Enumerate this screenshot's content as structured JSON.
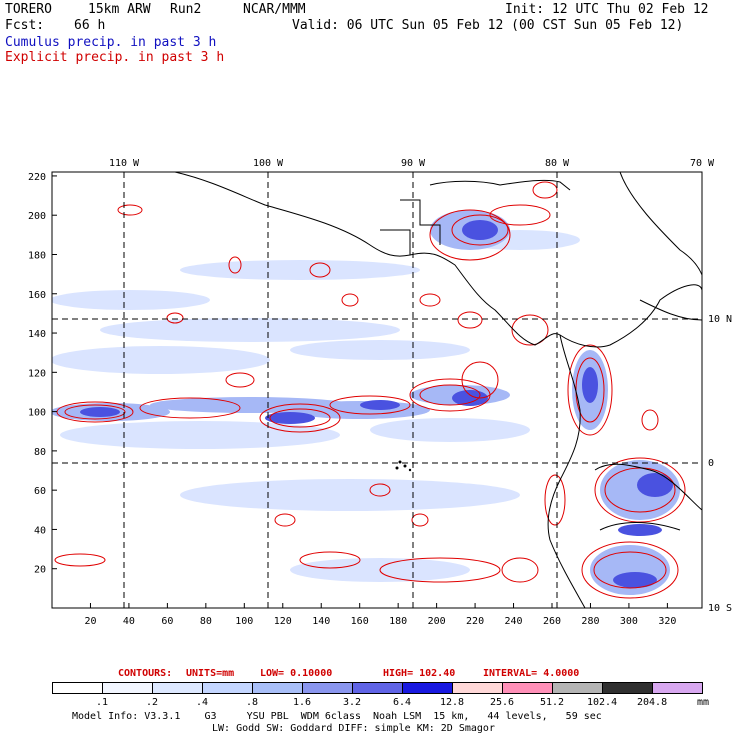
{
  "header": {
    "model": "TORERO",
    "resolution": "15km ARW",
    "run": "Run2",
    "org": "NCAR/MMM",
    "init": "Init: 12 UTC Thu 02 Feb 12",
    "fcst_label": "Fcst:",
    "fcst_value": "66 h",
    "valid": "Valid: 06 UTC Sun 05 Feb 12 (00 CST Sun 05 Feb 12)",
    "line_cumulus": "Cumulus precip. in past 3 h",
    "line_explicit": "Explicit precip. in past 3 h"
  },
  "map": {
    "lon_labels": [
      "110 W",
      "100 W",
      "90 W",
      "80 W",
      "70 W"
    ],
    "lat_labels": [
      "10 N",
      "0",
      "10 S"
    ],
    "y_ticks": [
      "220",
      "200",
      "180",
      "160",
      "140",
      "120",
      "100",
      "80",
      "60",
      "40",
      "20"
    ],
    "x_ticks": [
      "20",
      "40",
      "60",
      "80",
      "100",
      "120",
      "140",
      "160",
      "180",
      "200",
      "220",
      "240",
      "260",
      "280",
      "300",
      "320"
    ]
  },
  "contours": {
    "label": "CONTOURS:",
    "units": "UNITS=mm",
    "low": "LOW= 0.10000",
    "high": "HIGH= 102.40",
    "interval": "INTERVAL= 4.0000"
  },
  "colorbar": {
    "units": "mm",
    "labels": [
      ".1",
      ".2",
      ".4",
      ".8",
      "1.6",
      "3.2",
      "6.4",
      "12.8",
      "25.6",
      "51.2",
      "102.4",
      "204.8"
    ],
    "colors": [
      "#ffffff",
      "#f2f6ff",
      "#dde8ff",
      "#c4d6ff",
      "#a9bff8",
      "#8a96ee",
      "#6064e6",
      "#1818e0",
      "#ffd8d8",
      "#ff90b8",
      "#b4b4b4",
      "#303030",
      "#d8a8f0"
    ]
  },
  "footer": {
    "line1": "Model Info: V3.3.1    G3     YSU PBL  WDM 6class  Noah LSM  15 km,   44 levels,   59 sec",
    "line2": "LW: Godd SW: Goddard DIFF: simple KM: 2D Smagor"
  }
}
